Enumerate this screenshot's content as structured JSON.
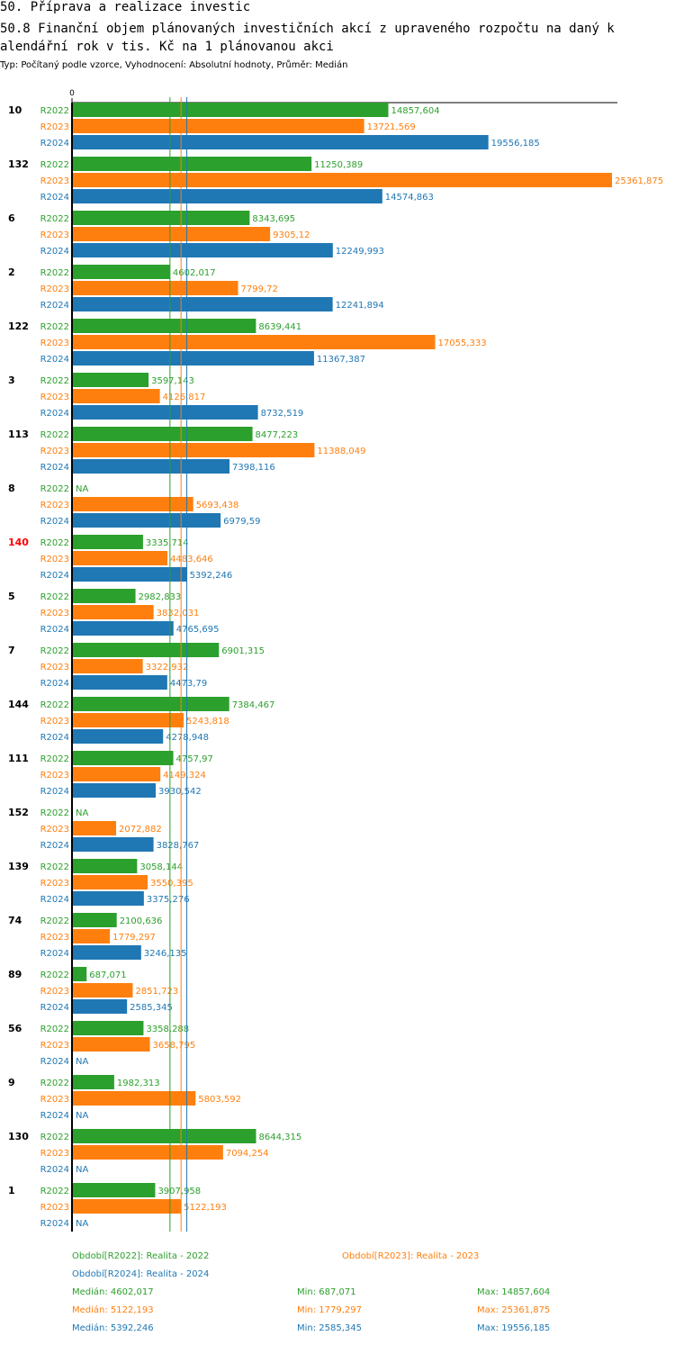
{
  "title": {
    "line1": "50. Příprava a realizace investic",
    "line2": "50.8 Finanční objem plánovaných investičních akcí z upraveného rozpočtu na daný k",
    "line3": "alendářní rok v tis. Kč na 1 plánovanou akci",
    "subtitle": "Typ: Počítaný podle vzorce, Vyhodnocení: Absolutní hodnoty, Průměr: Medián"
  },
  "colors": {
    "R2022": "#2ca02c",
    "R2023": "#ff7f0e",
    "R2024": "#1f77b4",
    "highlight": "#ff0000",
    "text": "#000000"
  },
  "chart_data": {
    "type": "bar",
    "orientation": "horizontal",
    "xlim": [
      0,
      25361.875
    ],
    "axis_zero_label": "0",
    "highlighted_category": "140",
    "series": [
      {
        "name": "R2022",
        "values": [
          14857.604,
          11250.389,
          8343.695,
          4602.017,
          8639.441,
          3597.143,
          8477.223,
          null,
          3335.714,
          2982.833,
          6901.315,
          7384.467,
          4757.97,
          null,
          3058.144,
          2100.636,
          687.071,
          3358.288,
          1982.313,
          8644.315,
          3907.958
        ]
      },
      {
        "name": "R2023",
        "values": [
          13721.569,
          25361.875,
          9305.12,
          7799.72,
          17055.333,
          4126.817,
          11388.049,
          5693.438,
          4483.646,
          3832.031,
          3322.932,
          5243.818,
          4149.324,
          2072.882,
          3550.395,
          1779.297,
          2851.723,
          3658.795,
          5803.592,
          7094.254,
          5122.193
        ]
      },
      {
        "name": "R2024",
        "values": [
          19556.185,
          14574.863,
          12249.993,
          12241.894,
          11367.387,
          8732.519,
          7398.116,
          6979.59,
          5392.246,
          4765.695,
          4473.79,
          4278.948,
          3930.542,
          3828.767,
          3375.276,
          3246.135,
          2585.345,
          null,
          null,
          null,
          null
        ]
      }
    ],
    "categories": [
      "10",
      "132",
      "6",
      "2",
      "122",
      "3",
      "113",
      "8",
      "140",
      "5",
      "7",
      "144",
      "111",
      "152",
      "139",
      "74",
      "89",
      "56",
      "9",
      "130",
      "1"
    ],
    "value_labels": [
      [
        "14857,604",
        "13721,569",
        "19556,185"
      ],
      [
        "11250,389",
        "25361,875",
        "14574,863"
      ],
      [
        "8343,695",
        "9305,12",
        "12249,993"
      ],
      [
        "4602,017",
        "7799,72",
        "12241,894"
      ],
      [
        "8639,441",
        "17055,333",
        "11367,387"
      ],
      [
        "3597,143",
        "4126,817",
        "8732,519"
      ],
      [
        "8477,223",
        "11388,049",
        "7398,116"
      ],
      [
        "NA",
        "5693,438",
        "6979,59"
      ],
      [
        "3335,714",
        "4483,646",
        "5392,246"
      ],
      [
        "2982,833",
        "3832,031",
        "4765,695"
      ],
      [
        "6901,315",
        "3322,932",
        "4473,79"
      ],
      [
        "7384,467",
        "5243,818",
        "4278,948"
      ],
      [
        "4757,97",
        "4149,324",
        "3930,542"
      ],
      [
        "NA",
        "2072,882",
        "3828,767"
      ],
      [
        "3058,144",
        "3550,395",
        "3375,276"
      ],
      [
        "2100,636",
        "1779,297",
        "3246,135"
      ],
      [
        "687,071",
        "2851,723",
        "2585,345"
      ],
      [
        "3358,288",
        "3658,795",
        "NA"
      ],
      [
        "1982,313",
        "5803,592",
        "NA"
      ],
      [
        "8644,315",
        "7094,254",
        "NA"
      ],
      [
        "3907,958",
        "5122,193",
        "NA"
      ]
    ],
    "medians": [
      4602.017,
      5122.193,
      5392.246
    ]
  },
  "legend": {
    "period_2022": "Období[R2022]: Realita - 2022",
    "period_2023": "Období[R2023]: Realita - 2023",
    "period_2024": "Období[R2024]: Realita - 2024",
    "stats": [
      {
        "median": "Medián: 4602,017",
        "min": "Min: 687,071",
        "max": "Max: 14857,604"
      },
      {
        "median": "Medián: 5122,193",
        "min": "Min: 1779,297",
        "max": "Max: 25361,875"
      },
      {
        "median": "Medián: 5392,246",
        "min": "Min: 2585,345",
        "max": "Max: 19556,185"
      }
    ]
  }
}
